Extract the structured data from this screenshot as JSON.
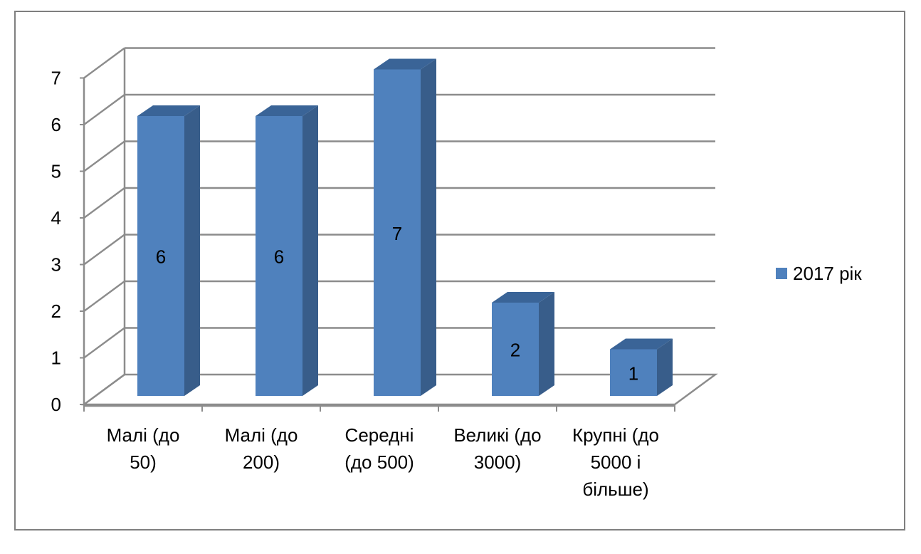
{
  "chart_data": {
    "type": "bar",
    "style": "3d-clustered-column",
    "categories": [
      [
        "Малі (до",
        "50)"
      ],
      [
        "Малі (до",
        "200)"
      ],
      [
        "Середні",
        "(до 500)"
      ],
      [
        "Великі (до",
        "3000)"
      ],
      [
        "Крупні (до",
        "5000 і",
        "більше)"
      ]
    ],
    "series": [
      {
        "name": "2017 рік",
        "values": [
          6,
          6,
          7,
          2,
          1
        ],
        "color": "#4F81BD",
        "side_color": "#385D8A",
        "top_color": "#3A6497"
      }
    ],
    "ylim": [
      0,
      7
    ],
    "yticks": [
      0,
      1,
      2,
      3,
      4,
      5,
      6,
      7
    ],
    "grid": true,
    "data_labels": true,
    "legend_position": "right",
    "title": "",
    "xlabel": "",
    "ylabel": ""
  }
}
